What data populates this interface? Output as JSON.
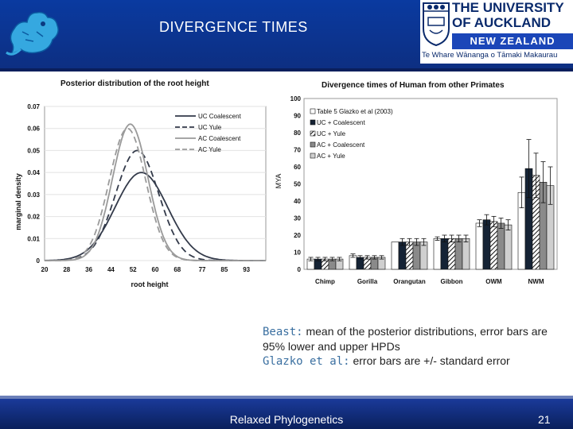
{
  "slide": {
    "title": "DIVERGENCE TIMES",
    "university": {
      "line1": "THE UNIVERSITY",
      "line2": "OF AUCKLAND",
      "country": "NEW ZEALAND",
      "maori": "Te Whare Wānanga o Tāmaki Makaurau"
    },
    "caption": {
      "beast_label": "Beast:",
      "beast_text": " mean of the posterior distributions, error bars are 95% lower and upper HPDs",
      "glazko_label": "Glazko et al:",
      "glazko_text": " error bars are +/- standard error"
    },
    "footer_text": "Relaxed Phylogenetics",
    "page_number": "21"
  },
  "chart_data": [
    {
      "type": "line",
      "title": "Posterior distribution of the root height",
      "xlabel": "root height",
      "ylabel": "marginal density",
      "xlim": [
        20,
        100
      ],
      "ylim": [
        0,
        0.07
      ],
      "x_ticks": [
        "20",
        "28",
        "36",
        "44",
        "52",
        "60",
        "68",
        "77",
        "85",
        "93"
      ],
      "y_ticks": [
        "0",
        "0.01",
        "0.02",
        "0.03",
        "0.04",
        "0.05",
        "0.06",
        "0.07"
      ],
      "legend_position": "top-right",
      "series": [
        {
          "name": "UC Coalescent",
          "color": "#333a4a",
          "dash": "solid",
          "mean": 55,
          "sd": 9.5,
          "peak": 0.04
        },
        {
          "name": "UC Yule",
          "color": "#333a4a",
          "dash": "dashed",
          "mean": 53.5,
          "sd": 7.8,
          "peak": 0.05
        },
        {
          "name": "AC Coalescent",
          "color": "#9a9a9a",
          "dash": "solid",
          "mean": 51,
          "sd": 6.4,
          "peak": 0.062
        },
        {
          "name": "AC Yule",
          "color": "#9a9a9a",
          "dash": "dashed",
          "mean": 50,
          "sd": 6.6,
          "peak": 0.06
        }
      ]
    },
    {
      "type": "bar",
      "title": "Divergence times of Human from other Primates",
      "ylabel": "MYA",
      "ylim": [
        0,
        100
      ],
      "y_ticks": [
        "0",
        "10",
        "20",
        "30",
        "40",
        "50",
        "60",
        "70",
        "80",
        "90",
        "100"
      ],
      "categories": [
        "Chimp",
        "Gorilla",
        "Orangutan",
        "Gibbon",
        "OWM",
        "NWM"
      ],
      "legend_position": "top-left",
      "series": [
        {
          "name": "Table 5 Glazko et al (2003)",
          "fill": "#ffffff",
          "values": [
            6,
            8,
            16,
            18,
            27,
            45
          ],
          "err": [
            1,
            1,
            0,
            1,
            2,
            9
          ]
        },
        {
          "name": "UC + Coalescent",
          "fill": "#152335",
          "values": [
            6,
            7,
            16,
            18,
            29,
            59
          ],
          "err": [
            1,
            1,
            2,
            2,
            3,
            17
          ]
        },
        {
          "name": "UC + Yule",
          "fill": "hatch",
          "values": [
            6,
            7,
            16,
            18,
            28,
            55
          ],
          "err": [
            1,
            1,
            2,
            2,
            3,
            13
          ]
        },
        {
          "name": "AC + Coalescent",
          "fill": "#8a8a8a",
          "values": [
            6,
            7,
            16,
            18,
            27,
            51
          ],
          "err": [
            1,
            1,
            2,
            2,
            3,
            12
          ]
        },
        {
          "name": "AC + Yule",
          "fill": "#cfcfcf",
          "values": [
            6,
            7,
            16,
            18,
            26,
            49
          ],
          "err": [
            1,
            1,
            2,
            2,
            3,
            11
          ]
        }
      ]
    }
  ]
}
